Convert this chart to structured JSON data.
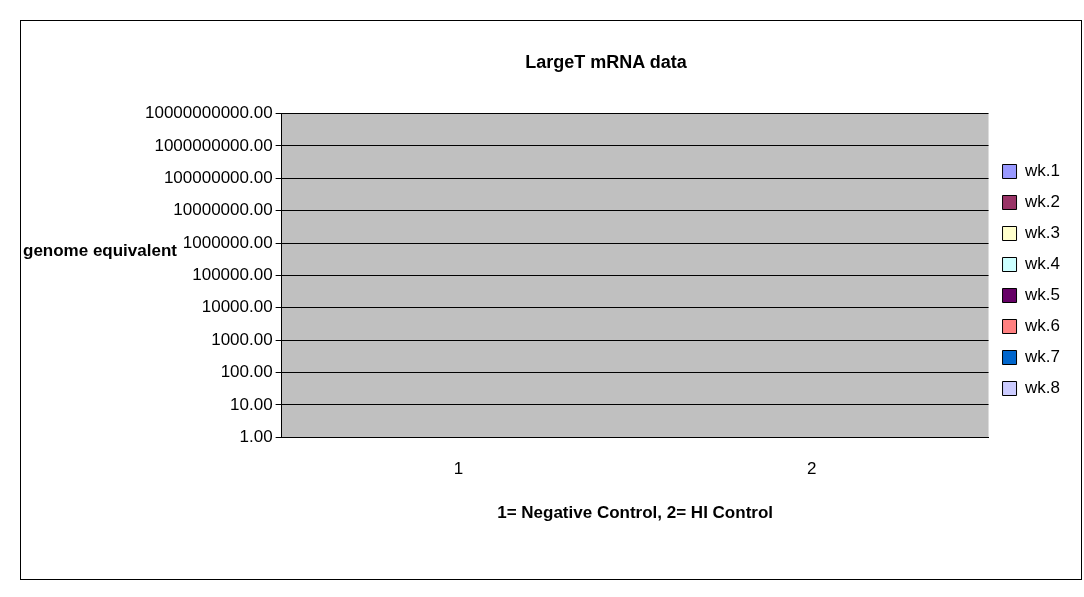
{
  "chart_data": {
    "type": "bar",
    "title": "LargeT mRNA data",
    "xlabel": "1= Negative Control, 2= HI Control",
    "ylabel": "genome equivalent",
    "categories": [
      "1",
      "2"
    ],
    "series": [
      {
        "name": "wk.1",
        "color": "#9999ff",
        "values": [
          1,
          1
        ]
      },
      {
        "name": "wk.2",
        "color": "#993366",
        "values": [
          1,
          1
        ]
      },
      {
        "name": "wk.3",
        "color": "#ffffcc",
        "values": [
          1,
          1
        ]
      },
      {
        "name": "wk.4",
        "color": "#ccffff",
        "values": [
          1,
          1
        ]
      },
      {
        "name": "wk.5",
        "color": "#660066",
        "values": [
          1,
          1
        ]
      },
      {
        "name": "wk.6",
        "color": "#ff8080",
        "values": [
          1,
          1
        ]
      },
      {
        "name": "wk.7",
        "color": "#0066cc",
        "values": [
          1,
          1
        ]
      },
      {
        "name": "wk.8",
        "color": "#ccccff",
        "values": [
          1,
          1
        ]
      }
    ],
    "log": "y",
    "ylim": [
      1,
      10000000000
    ],
    "yticks": [
      {
        "value": 1,
        "label": "1.00"
      },
      {
        "value": 10,
        "label": "10.00"
      },
      {
        "value": 100,
        "label": "100.00"
      },
      {
        "value": 1000,
        "label": "1000.00"
      },
      {
        "value": 10000,
        "label": "10000.00"
      },
      {
        "value": 100000,
        "label": "100000.00"
      },
      {
        "value": 1000000,
        "label": "1000000.00"
      },
      {
        "value": 10000000,
        "label": "10000000.00"
      },
      {
        "value": 100000000,
        "label": "100000000.00"
      },
      {
        "value": 1000000000,
        "label": "1000000000.00"
      },
      {
        "value": 10000000000,
        "label": "10000000000.00"
      }
    ],
    "grid": "y",
    "legend": "right"
  }
}
